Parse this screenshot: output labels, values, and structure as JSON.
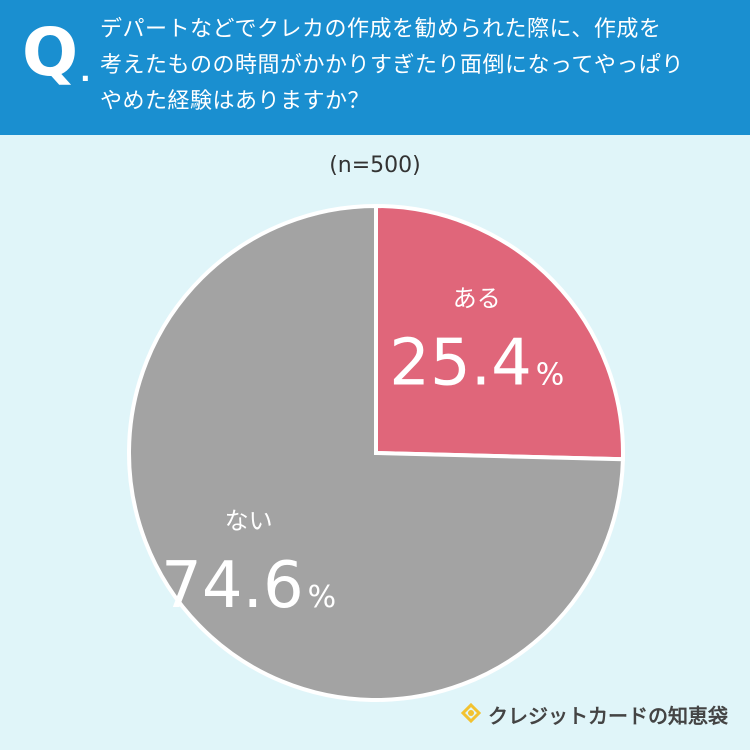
{
  "header": {
    "q_mark": "Q",
    "q_dot": ".",
    "question_lines": [
      "デパートなどでクレカの作成を勧められた際に、作成を",
      "考えたものの時間がかかりすぎたり面倒になってやっぱり",
      "やめた経験はありますか？"
    ]
  },
  "subtitle": "(n=500)",
  "chart_data": {
    "type": "pie",
    "title": "デパートなどでクレカの作成を勧められた際に、作成を考えたものの時間がかかりすぎたり面倒になってやっぱりやめた経験はありますか？",
    "subtitle": "(n=500)",
    "slices": [
      {
        "label": "ある",
        "value": 25.4,
        "color": "#e0667a"
      },
      {
        "label": "ない",
        "value": 74.6,
        "color": "#a3a3a3"
      }
    ],
    "unit": "%",
    "start_angle": "12 o'clock",
    "direction": "clockwise"
  },
  "brand": {
    "name": "クレジットカードの知恵袋",
    "icon": "lightbulb-icon",
    "icon_color": "#f2c230"
  }
}
